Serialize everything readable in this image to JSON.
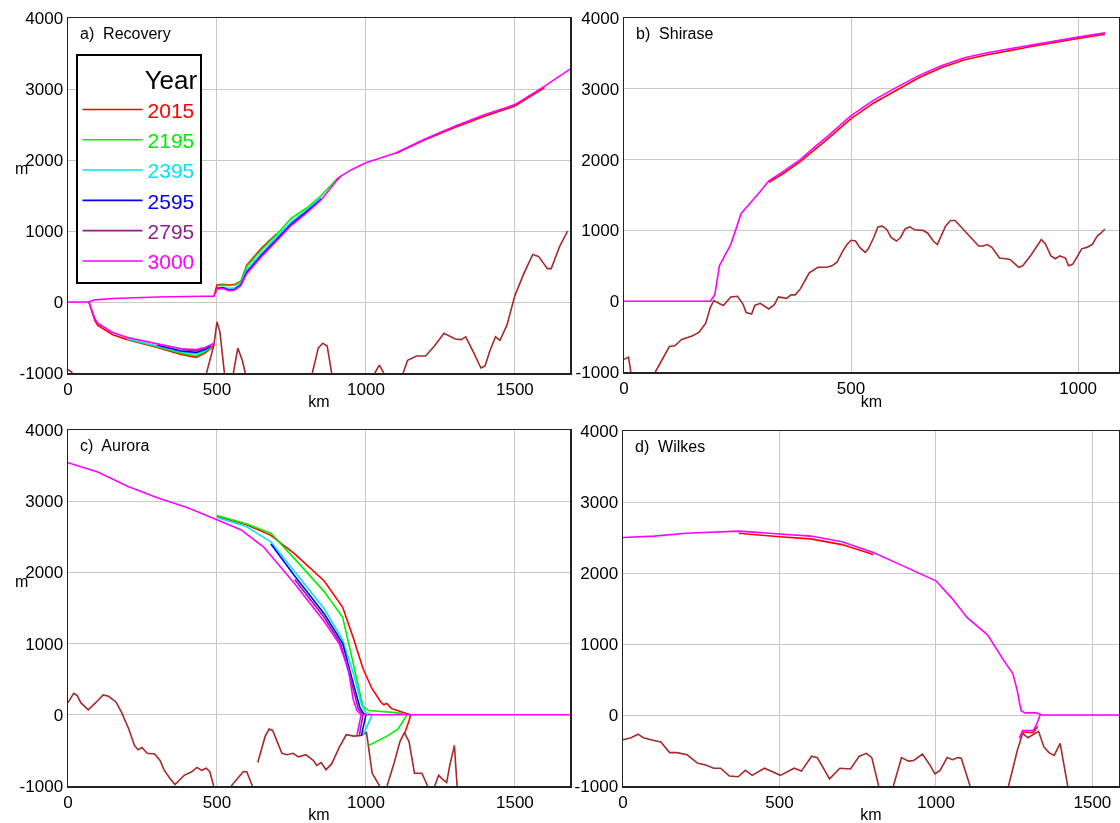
{
  "chart_data": [
    {
      "type": "line",
      "title": "a)  Recovery",
      "xlabel": "km",
      "ylabel": "m",
      "legend_title": "Year",
      "legend": "top left",
      "grid": true,
      "xlim": [
        0,
        1685
      ],
      "xticks": [
        0,
        500,
        1000,
        1500
      ],
      "ylim": [
        -1000,
        4000
      ],
      "yticks": [
        -1000,
        0,
        1000,
        2000,
        3000,
        4000
      ],
      "series": [
        {
          "color": "#a52a2a",
          "x": [
            0,
            15,
            16,
            465,
            490,
            500,
            510,
            525,
            526,
            555,
            570,
            585,
            595,
            596,
            820,
            840,
            855,
            870,
            885,
            886,
            1030,
            1045,
            1060,
            1061,
            1125,
            1140,
            1170,
            1200,
            1230,
            1262,
            1300,
            1320,
            1335,
            1360,
            1386,
            1400,
            1415,
            1435,
            1450,
            1473,
            1500,
            1530,
            1560,
            1580,
            1609,
            1622,
            1650,
            1677
          ],
          "values": [
            -950,
            -1000,
            null,
            -1000,
            -600,
            -280,
            -420,
            -1000,
            null,
            -1000,
            -650,
            -820,
            -1000,
            null,
            -1000,
            -650,
            -580,
            -620,
            -1000,
            null,
            -1000,
            -890,
            -1000,
            null,
            -1000,
            -820,
            -760,
            -760,
            -620,
            -440,
            -520,
            -530,
            -490,
            -700,
            -930,
            -900,
            -700,
            -490,
            -540,
            -330,
            90,
            400,
            670,
            640,
            470,
            470,
            780,
            1000
          ]
        },
        {
          "name": "2015",
          "color": "#ff0000",
          "x": [
            490,
            500,
            520,
            540,
            560,
            580,
            600,
            650,
            700,
            750,
            800,
            850,
            900,
            915,
            950,
            1000,
            1100,
            1200,
            1300,
            1400,
            1500,
            1600
          ],
          "values": [
            80,
            240,
            250,
            240,
            250,
            290,
            520,
            760,
            960,
            null,
            null,
            null,
            1720,
            1770,
            null,
            null,
            2090,
            2290,
            2460,
            2620,
            2760,
            3020
          ]
        },
        {
          "color": "#ff0000",
          "x": [
            70,
            90,
            100,
            150,
            200,
            300,
            380,
            430,
            460,
            480,
            490
          ],
          "values": [
            0,
            -260,
            -330,
            -460,
            -530,
            -640,
            -740,
            -780,
            -720,
            -650,
            -600
          ]
        },
        {
          "name": "2195",
          "color": "#00ee00",
          "x": [
            500,
            520,
            540,
            560,
            580,
            600,
            650,
            700,
            750,
            800,
            850,
            900
          ],
          "values": [
            230,
            240,
            230,
            240,
            280,
            500,
            740,
            950,
            1180,
            1320,
            1500,
            1720
          ]
        },
        {
          "color": "#00ee00",
          "x": [
            200,
            300,
            380,
            430,
            460,
            480
          ],
          "values": [
            -520,
            -630,
            -720,
            -760,
            -700,
            -640
          ]
        },
        {
          "name": "2395",
          "color": "#00e5ee",
          "x": [
            500,
            520,
            540,
            560,
            580,
            600,
            650,
            700,
            750,
            800,
            850
          ],
          "values": [
            200,
            210,
            190,
            200,
            260,
            450,
            690,
            910,
            1130,
            1290,
            1470
          ]
        },
        {
          "color": "#00e5ee",
          "x": [
            200,
            300,
            380,
            430,
            460,
            480
          ],
          "values": [
            -520,
            -620,
            -700,
            -730,
            -680,
            -630
          ]
        },
        {
          "name": "2595",
          "color": "#0000ff",
          "x": [
            500,
            520,
            540,
            560,
            580,
            600,
            650,
            700,
            750,
            800,
            850
          ],
          "values": [
            190,
            200,
            170,
            180,
            240,
            420,
            660,
            880,
            1100,
            1270,
            1450
          ]
        },
        {
          "color": "#0000ff",
          "x": [
            300,
            380,
            430,
            460,
            480
          ],
          "values": [
            -610,
            -690,
            -710,
            -670,
            -620
          ]
        },
        {
          "name": "2795",
          "color": "#8e1f8e",
          "x": [
            380,
            430,
            460,
            480
          ],
          "values": [
            -670,
            -690,
            -650,
            -610
          ]
        },
        {
          "name": "3000",
          "color": "#ff00ff",
          "x": [
            0,
            70,
            90,
            150,
            300,
            450,
            490,
            500,
            520,
            540,
            560,
            580,
            600,
            650,
            700,
            750,
            800,
            850,
            900,
            915,
            950,
            1000,
            1100,
            1200,
            1300,
            1400,
            1500,
            1600,
            1685
          ],
          "values": [
            0,
            0,
            30,
            50,
            70,
            80,
            80,
            180,
            190,
            160,
            170,
            230,
            400,
            640,
            860,
            1080,
            1250,
            1440,
            1700,
            1770,
            1860,
            1960,
            2100,
            2300,
            2480,
            2640,
            2780,
            3040,
            3280
          ]
        },
        {
          "color": "#ff00ff",
          "x": [
            70,
            90,
            100,
            150,
            200,
            300,
            380,
            430,
            460,
            480,
            490
          ],
          "values": [
            0,
            -230,
            -300,
            -430,
            -500,
            -590,
            -660,
            -670,
            -640,
            -600,
            -580
          ]
        }
      ]
    },
    {
      "type": "line",
      "title": "b)  Shirase",
      "xlabel": "km",
      "grid": true,
      "xlim": [
        0,
        1090
      ],
      "xticks": [
        0,
        500,
        1000
      ],
      "ylim": [
        -1000,
        4000
      ],
      "yticks": [
        -1000,
        0,
        1000,
        2000,
        3000,
        4000
      ],
      "series": [
        {
          "color": "#a52a2a",
          "x": [
            0,
            10,
            15,
            16,
            69,
            100,
            112,
            127,
            150,
            165,
            180,
            190,
            198,
            212,
            219,
            235,
            250,
            262,
            269,
            281,
            288,
            300,
            319,
            331,
            340,
            358,
            368,
            377,
            388,
            400,
            408,
            427,
            446,
            458,
            469,
            481,
            491,
            500,
            510,
            519,
            531,
            538,
            550,
            559,
            569,
            579,
            588,
            600,
            609,
            619,
            629,
            640,
            658,
            669,
            681,
            690,
            708,
            719,
            729,
            781,
            791,
            800,
            810,
            827,
            841,
            850,
            869,
            878,
            896,
            919,
            928,
            940,
            950,
            960,
            972,
            979,
            988,
            1008,
            1019,
            1031,
            1042,
            1050,
            1059
          ],
          "values": [
            -820,
            -790,
            -1000,
            null,
            -1000,
            -640,
            -630,
            -540,
            -490,
            -440,
            -310,
            -90,
            10,
            -40,
            -60,
            60,
            70,
            -40,
            -160,
            -180,
            -60,
            -30,
            -110,
            -50,
            60,
            40,
            90,
            90,
            170,
            310,
            400,
            480,
            480,
            500,
            550,
            700,
            800,
            860,
            850,
            760,
            690,
            740,
            900,
            1050,
            1060,
            1010,
            900,
            850,
            900,
            1020,
            1050,
            1010,
            1000,
            960,
            850,
            800,
            1060,
            1140,
            1140,
            780,
            780,
            800,
            760,
            610,
            600,
            590,
            480,
            500,
            650,
            870,
            810,
            640,
            600,
            640,
            610,
            500,
            520,
            740,
            760,
            800,
            920,
            960,
            1020
          ]
        },
        {
          "color": "#ff0000",
          "x": [
            319,
            350,
            388,
            420,
            450,
            500,
            550,
            600,
            650,
            700,
            750,
            800,
            900,
            1000,
            1059
          ],
          "values": [
            1680,
            1800,
            1970,
            2140,
            2300,
            2580,
            2800,
            2980,
            3160,
            3300,
            3410,
            3480,
            3600,
            3710,
            3770
          ]
        },
        {
          "color": "#ff00ff",
          "x": [
            0,
            190,
            200,
            210,
            235,
            258,
            280,
            300,
            319,
            350,
            388,
            420,
            450,
            500,
            550,
            600,
            650,
            700,
            750,
            800,
            900,
            1000,
            1059
          ],
          "values": [
            0,
            0,
            90,
            500,
            800,
            1240,
            1400,
            1550,
            1700,
            1830,
            2000,
            2180,
            2340,
            2620,
            2840,
            3020,
            3190,
            3330,
            3440,
            3510,
            3620,
            3730,
            3790
          ]
        }
      ]
    },
    {
      "type": "line",
      "title": "c)  Aurora",
      "xlabel": "km",
      "ylabel": "m",
      "grid": true,
      "xlim": [
        0,
        1685
      ],
      "xticks": [
        0,
        500,
        1000,
        1500
      ],
      "ylim": [
        -1000,
        4000
      ],
      "yticks": [
        -1000,
        0,
        1000,
        2000,
        3000,
        4000
      ],
      "series": [
        {
          "color": "#a52a2a",
          "x": [
            0,
            19,
            31,
            43,
            68,
            93,
            118,
            136,
            161,
            179,
            204,
            223,
            235,
            248,
            266,
            291,
            309,
            322,
            340,
            359,
            371,
            390,
            415,
            433,
            449,
            464,
            476,
            489,
            490,
            548,
            588,
            600,
            619,
            620,
            637,
            662,
            675,
            687,
            718,
            736,
            755,
            774,
            798,
            823,
            835,
            850,
            866,
            885,
            910,
            934,
            959,
            984,
            1002,
            1021,
            1046,
            1047,
            1071,
            1095,
            1114,
            1129,
            1145,
            1163,
            1188,
            1207,
            1208,
            1231,
            1244,
            1256,
            1271,
            1281,
            1297,
            1306
          ],
          "values": [
            170,
            300,
            270,
            170,
            70,
            170,
            280,
            260,
            180,
            40,
            -200,
            -430,
            -490,
            -460,
            -540,
            -550,
            -640,
            -770,
            -880,
            -980,
            -930,
            -850,
            -800,
            -740,
            -780,
            -750,
            -800,
            -1000,
            null,
            -1000,
            -800,
            -800,
            -1000,
            null,
            -670,
            -300,
            -200,
            -220,
            -540,
            -560,
            -540,
            -590,
            -560,
            -640,
            -710,
            -670,
            -770,
            -690,
            -460,
            -280,
            -300,
            -290,
            -250,
            -820,
            -1000,
            null,
            -1000,
            -670,
            -380,
            -250,
            -380,
            -820,
            -820,
            -1000,
            null,
            -1000,
            -850,
            -900,
            -950,
            -720,
            -430,
            -1000
          ]
        },
        {
          "name": "2015",
          "color": "#ff0000",
          "x": [
            500,
            600,
            681,
            761,
            860,
            922,
            960,
            990,
            1020,
            1050,
            1060,
            1070,
            1085,
            1120,
            1150
          ],
          "values": [
            2790,
            2670,
            2520,
            2260,
            1880,
            1510,
            1050,
            650,
            370,
            180,
            140,
            160,
            90,
            40,
            0
          ]
        },
        {
          "color": "#ff0000",
          "x": [
            1130,
            1145,
            1150
          ],
          "values": [
            -260,
            -80,
            0
          ]
        },
        {
          "color": "#00ee00",
          "x": [
            500,
            600,
            681,
            761,
            860,
            922,
            959,
            990,
            1009,
            1100,
            1139
          ],
          "values": [
            2800,
            2680,
            2550,
            2190,
            1730,
            1370,
            690,
            120,
            60,
            30,
            0
          ]
        },
        {
          "color": "#00ee00",
          "x": [
            1009,
            1071,
            1108,
            1132,
            1139
          ],
          "values": [
            -430,
            -300,
            -200,
            -40,
            0
          ]
        },
        {
          "color": "#00e5ee",
          "x": [
            500,
            600,
            681,
            761,
            860,
            922,
            960,
            985,
            1000,
            1021
          ],
          "values": [
            2770,
            2640,
            2430,
            2010,
            1490,
            1050,
            560,
            150,
            30,
            0
          ]
        },
        {
          "color": "#00e5ee",
          "x": [
            990,
            1021
          ],
          "values": [
            -290,
            0
          ]
        },
        {
          "color": "#0000ff",
          "x": [
            681,
            761,
            860,
            922,
            955,
            980,
            992,
            1000
          ],
          "values": [
            2400,
            1950,
            1420,
            1000,
            480,
            100,
            20,
            0
          ]
        },
        {
          "color": "#0000ff",
          "x": [
            985,
            1000
          ],
          "values": [
            -290,
            0
          ]
        },
        {
          "color": "#8e1f8e",
          "x": [
            761,
            860,
            915,
            950,
            975,
            990
          ],
          "values": [
            1900,
            1370,
            1000,
            480,
            80,
            0
          ]
        },
        {
          "color": "#8e1f8e",
          "x": [
            978,
            990
          ],
          "values": [
            -290,
            0
          ]
        },
        {
          "color": "#ff00ff",
          "x": [
            0,
            100,
            200,
            300,
            400,
            500,
            580,
            656,
            761,
            860,
            910,
            941,
            957,
            970,
            984,
            1685
          ],
          "values": [
            3540,
            3410,
            3210,
            3050,
            2910,
            2740,
            2600,
            2360,
            1840,
            1310,
            1000,
            640,
            220,
            60,
            0,
            0
          ]
        },
        {
          "color": "#ff00ff",
          "x": [
            970,
            984
          ],
          "values": [
            -280,
            0
          ]
        }
      ]
    },
    {
      "type": "line",
      "title": "d)  Wilkes",
      "xlabel": "km",
      "grid": true,
      "xlim": [
        0,
        1585
      ],
      "xticks": [
        0,
        500,
        1000,
        1500
      ],
      "ylim": [
        -1000,
        4000
      ],
      "yticks": [
        -1000,
        0,
        1000,
        2000,
        3000,
        4000
      ],
      "series": [
        {
          "color": "#a52a2a",
          "x": [
            0,
            26,
            48,
            65,
            99,
            121,
            149,
            172,
            205,
            239,
            262,
            290,
            312,
            340,
            368,
            391,
            413,
            452,
            503,
            547,
            570,
            603,
            621,
            660,
            693,
            727,
            755,
            778,
            795,
            817,
            818,
            864,
            890,
            912,
            929,
            957,
            980,
            997,
            1013,
            1036,
            1053,
            1070,
            1081,
            1109,
            1110,
            1232,
            1260,
            1277,
            1294,
            1328,
            1345,
            1361,
            1378,
            1397,
            1421
          ],
          "values": [
            -350,
            -320,
            -270,
            -320,
            -360,
            -380,
            -530,
            -530,
            -560,
            -680,
            -700,
            -750,
            -750,
            -860,
            -870,
            -780,
            -850,
            -750,
            -850,
            -750,
            -790,
            -580,
            -600,
            -900,
            -750,
            -760,
            -580,
            -540,
            -600,
            -1000,
            null,
            -1000,
            -600,
            -650,
            -640,
            -550,
            -700,
            -830,
            -780,
            -600,
            -630,
            -600,
            -610,
            -1000,
            null,
            -1000,
            -500,
            -260,
            -320,
            -230,
            -450,
            -530,
            -570,
            -400,
            -1000
          ]
        },
        {
          "color": "#ff0000",
          "x": [
            370,
            500,
            600,
            700,
            800
          ],
          "values": [
            2560,
            2510,
            2480,
            2400,
            2260
          ]
        },
        {
          "color": "#ff0000",
          "x": [
            1277,
            1311,
            1325
          ],
          "values": [
            -240,
            -250,
            -160
          ]
        },
        {
          "color": "#ff00ff",
          "x": [
            0,
            100,
            200,
            370,
            500,
            600,
            700,
            800,
            900,
            1000,
            1050,
            1100,
            1165,
            1215,
            1246,
            1260,
            1272,
            1285,
            1320,
            1340,
            1585
          ],
          "values": [
            2500,
            2520,
            2560,
            2590,
            2550,
            2520,
            2440,
            2290,
            2090,
            1890,
            1650,
            1370,
            1130,
            780,
            580,
            340,
            60,
            30,
            30,
            0,
            0
          ]
        },
        {
          "color": "#ff00ff",
          "x": [
            1266,
            1277,
            1311,
            1322,
            1333
          ],
          "values": [
            -330,
            -220,
            -220,
            -130,
            0
          ]
        }
      ]
    }
  ]
}
